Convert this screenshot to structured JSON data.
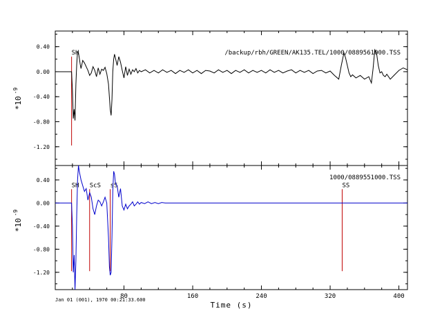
{
  "chart_data": [
    {
      "type": "line",
      "panel": "top",
      "title": "/backup/rbh/GREEN/AK135.TEL/1000/0889561000.TSS",
      "title_color": "#000000",
      "ylabel": "*10 -9",
      "ylim": [
        -1.5,
        0.65
      ],
      "xlim": [
        0,
        410
      ],
      "yticks": [
        0.4,
        0.0,
        -0.4,
        -0.8,
        -1.2
      ],
      "ytick_labels": [
        "0.40",
        "0.00",
        "-0.40",
        "-0.80",
        "-1.20"
      ],
      "line_color": "#000000",
      "phases": [
        {
          "label": "SH",
          "x": 19,
          "ymin": -1.18,
          "ymax": 0.24
        }
      ],
      "phase_color": "#c00000",
      "series": [
        {
          "x": [
            0,
            19,
            20,
            21,
            22,
            23,
            24,
            25,
            26,
            27,
            28,
            29,
            30,
            32,
            34,
            36,
            38,
            40,
            42,
            44,
            46,
            48,
            50,
            52,
            54,
            56,
            58,
            60,
            62,
            64,
            65,
            66,
            67,
            68,
            69,
            70,
            72,
            74,
            76,
            78,
            80,
            82,
            84,
            86,
            88,
            90,
            92,
            94,
            96,
            98,
            100,
            105,
            110,
            115,
            120,
            125,
            130,
            135,
            140,
            145,
            150,
            155,
            160,
            165,
            170,
            175,
            180,
            185,
            190,
            195,
            200,
            205,
            210,
            215,
            220,
            225,
            230,
            235,
            240,
            245,
            250,
            255,
            260,
            265,
            270,
            275,
            280,
            285,
            290,
            295,
            300,
            305,
            310,
            315,
            320,
            325,
            330,
            333,
            336,
            338,
            340,
            342,
            344,
            346,
            350,
            355,
            360,
            365,
            368,
            370,
            372,
            374,
            376,
            378,
            380,
            382,
            384,
            386,
            390,
            395,
            400,
            405,
            410
          ],
          "values": [
            0,
            0,
            -0.3,
            -0.75,
            -0.6,
            -0.78,
            -0.2,
            0.12,
            0.32,
            0.3,
            0.22,
            0.12,
            0.05,
            0.18,
            0.14,
            0.08,
            0.02,
            -0.06,
            -0.02,
            0.08,
            0.02,
            -0.08,
            0.06,
            -0.04,
            0.04,
            0.02,
            0.07,
            -0.03,
            -0.2,
            -0.6,
            -0.7,
            -0.45,
            0.0,
            0.2,
            0.28,
            0.22,
            0.1,
            0.24,
            0.15,
            0.02,
            -0.1,
            0.08,
            -0.06,
            0.04,
            -0.04,
            0.03,
            0.0,
            0.05,
            -0.02,
            0.02,
            0.0,
            0.03,
            -0.02,
            0.02,
            -0.02,
            0.03,
            -0.01,
            0.02,
            -0.03,
            0.02,
            -0.01,
            0.03,
            -0.02,
            0.02,
            -0.03,
            0.02,
            0.01,
            -0.02,
            0.03,
            -0.01,
            0.02,
            -0.03,
            0.02,
            -0.01,
            0.03,
            -0.02,
            0.02,
            -0.01,
            0.02,
            -0.02,
            0.03,
            -0.01,
            0.02,
            -0.02,
            0.01,
            0.03,
            -0.02,
            0.02,
            -0.01,
            0.02,
            -0.03,
            0.01,
            0.02,
            -0.02,
            0.01,
            -0.06,
            -0.12,
            0.1,
            0.3,
            0.22,
            0.1,
            -0.02,
            -0.08,
            -0.05,
            -0.1,
            -0.06,
            -0.12,
            -0.08,
            -0.18,
            0.05,
            0.35,
            0.3,
            0.1,
            -0.02,
            0.0,
            -0.06,
            -0.08,
            -0.04,
            -0.12,
            -0.05,
            0.02,
            0.06,
            0.03
          ]
        }
      ]
    },
    {
      "type": "line",
      "panel": "bottom",
      "title": "1000/0889551000.TSS",
      "title_color": "#0000cc",
      "xlabel": "Time (s)",
      "ylabel": "*10 -9",
      "ylim": [
        -1.5,
        0.65
      ],
      "xlim": [
        0,
        410
      ],
      "xticks": [
        80,
        160,
        240,
        320,
        400
      ],
      "xtick_labels": [
        "80",
        "160",
        "240",
        "320",
        "400"
      ],
      "yticks": [
        0.4,
        0.0,
        -0.4,
        -0.8,
        -1.2
      ],
      "ytick_labels": [
        "0.40",
        "0.00",
        "-0.40",
        "-0.80",
        "-1.20"
      ],
      "line_color": "#0000cc",
      "phases": [
        {
          "label": "SH",
          "x": 19,
          "ymin": -1.18,
          "ymax": 0.24
        },
        {
          "label": "ScS",
          "x": 40,
          "ymin": -1.18,
          "ymax": 0.24
        },
        {
          "label": "sS",
          "x": 64,
          "ymin": -1.18,
          "ymax": 0.24
        },
        {
          "label": "SS",
          "x": 334,
          "ymin": -1.18,
          "ymax": 0.24
        }
      ],
      "phase_color": "#c00000",
      "series": [
        {
          "x": [
            0,
            19,
            20,
            21,
            22,
            23,
            24,
            25,
            26,
            27,
            28,
            30,
            32,
            34,
            36,
            38,
            40,
            42,
            44,
            46,
            48,
            50,
            52,
            54,
            56,
            58,
            60,
            62,
            63,
            64,
            65,
            66,
            67,
            68,
            69,
            70,
            72,
            74,
            76,
            78,
            80,
            82,
            84,
            86,
            88,
            90,
            92,
            94,
            96,
            98,
            100,
            104,
            108,
            112,
            116,
            120,
            124,
            128,
            135,
            410
          ],
          "values": [
            0,
            0,
            -0.4,
            -1.2,
            -0.9,
            -1.5,
            -1.0,
            -0.2,
            0.4,
            0.65,
            0.55,
            0.4,
            0.3,
            0.2,
            0.25,
            0.05,
            0.18,
            0.1,
            -0.1,
            -0.2,
            -0.05,
            0.05,
            0.02,
            -0.05,
            0.02,
            0.1,
            0.0,
            -0.6,
            -1.1,
            -1.25,
            -1.2,
            -0.6,
            0.2,
            0.55,
            0.5,
            0.35,
            0.3,
            0.1,
            0.25,
            -0.05,
            -0.12,
            -0.02,
            -0.1,
            -0.05,
            -0.02,
            0.02,
            -0.05,
            -0.02,
            0.02,
            -0.02,
            0.01,
            -0.01,
            0.02,
            -0.01,
            0.01,
            -0.01,
            0.01,
            0.0,
            0.0,
            0.0
          ]
        }
      ]
    }
  ],
  "footer": {
    "timestamp": "Jan 01 (001), 1970 00:21:33.600"
  }
}
